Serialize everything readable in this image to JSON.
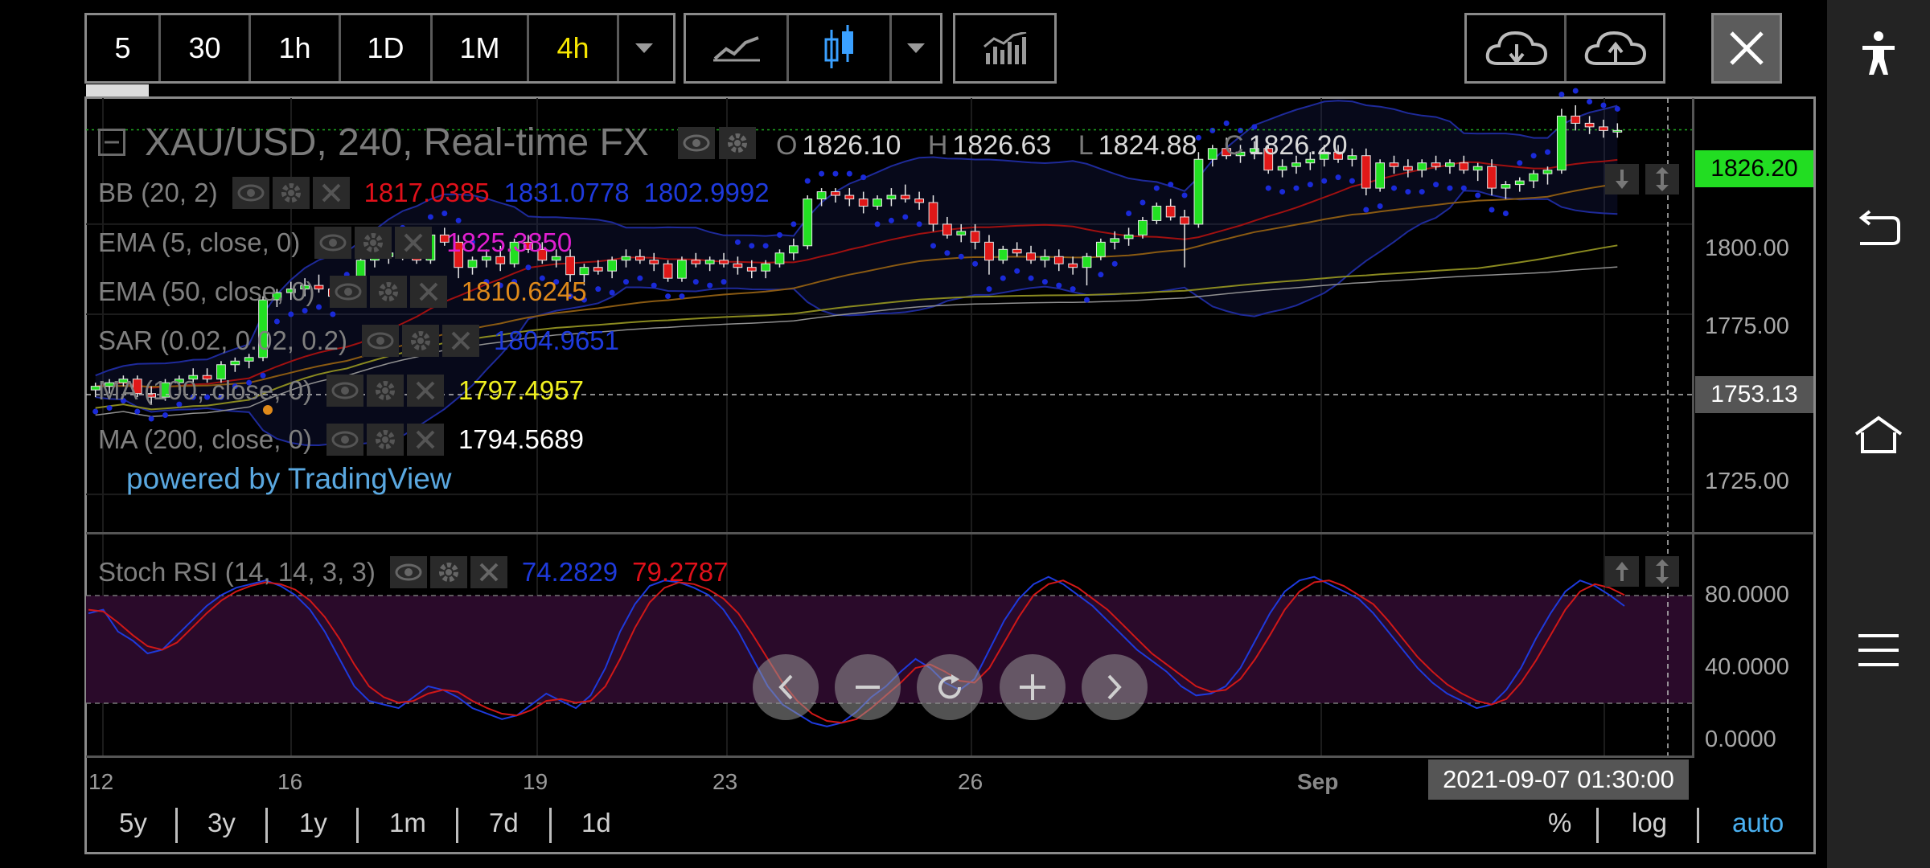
{
  "toolbar": {
    "intervals": [
      "5",
      "30",
      "1h",
      "1D",
      "1M",
      "4h"
    ],
    "active_interval": "4h",
    "chart_types": [
      "line-chart-icon",
      "candlestick-chart-icon",
      "chevron-down-icon"
    ],
    "indicators_icon": "indicators-icon",
    "cloud_icons": [
      "cloud-download-icon",
      "cloud-upload-icon"
    ]
  },
  "symbol": {
    "title": "XAU/USD, 240, Real-time FX",
    "ohlc": {
      "o_label": "O",
      "o": "1826.10",
      "h_label": "H",
      "h": "1826.63",
      "l_label": "L",
      "l": "1824.88",
      "c_label": "C",
      "c": "1826.20"
    }
  },
  "indicators": [
    {
      "name": "BB (20, 2)",
      "values": [
        "1817.0385",
        "1831.0778",
        "1802.9992"
      ],
      "colors": [
        "#e0101a",
        "#1e3adc",
        "#1e3adc"
      ]
    },
    {
      "name": "EMA (5, close, 0)",
      "values": [
        "1825.3850"
      ],
      "colors": [
        "#e01fd0"
      ]
    },
    {
      "name": "EMA (50, close, 0)",
      "values": [
        "1810.6245"
      ],
      "colors": [
        "#e08a1a"
      ]
    },
    {
      "name": "SAR (0.02, 0.02, 0.2)",
      "values": [
        "1804.9651"
      ],
      "colors": [
        "#1e3adc"
      ]
    },
    {
      "name": "MA (100, close, 0)",
      "values": [
        "1797.4957"
      ],
      "colors": [
        "#f0f020"
      ]
    },
    {
      "name": "MA (200, close, 0)",
      "values": [
        "1794.5689"
      ],
      "colors": [
        "#ffffff"
      ]
    }
  ],
  "powered_by": "powered by TradingView",
  "price_axis": {
    "labels": [
      "1800.00",
      "1775.00",
      "1725.00"
    ],
    "current_price": "1826.20",
    "cursor_price": "1753.13",
    "current_color": "#22dd22"
  },
  "stoch_rsi": {
    "name": "Stoch RSI (14, 14, 3, 3)",
    "values": [
      "74.2829",
      "79.2787"
    ],
    "colors": [
      "#1e3adc",
      "#e0101a"
    ],
    "axis_labels": [
      "80.0000",
      "40.0000",
      "0.0000"
    ]
  },
  "time_axis": {
    "labels": [
      "12",
      "16",
      "19",
      "23",
      "26",
      "Sep"
    ],
    "cursor_time": "2021-09-07 01:30:00"
  },
  "ranges": [
    "5y",
    "3y",
    "1y",
    "1m",
    "7d",
    "1d"
  ],
  "scale_options": {
    "percent": "%",
    "log": "log",
    "auto": "auto"
  },
  "nav_controls": [
    "chevron-left-icon",
    "minus-icon",
    "refresh-icon",
    "plus-icon",
    "chevron-right-icon"
  ],
  "side_bar": [
    "accessibility-icon",
    "back-icon",
    "home-icon",
    "menu-icon"
  ],
  "chart_data": {
    "type": "candlestick",
    "title": "XAU/USD, 240, Real-time FX",
    "ylim": [
      1715,
      1835
    ],
    "y_ticks": [
      1725,
      1775,
      1800
    ],
    "x_ticks": [
      "12",
      "16",
      "19",
      "23",
      "26",
      "Sep"
    ],
    "candles": [
      [
        1754,
        1756,
        1752,
        1755
      ],
      [
        1755,
        1757,
        1753,
        1756
      ],
      [
        1756,
        1758,
        1755,
        1757
      ],
      [
        1757,
        1758,
        1752,
        1753
      ],
      [
        1753,
        1755,
        1750,
        1752
      ],
      [
        1752,
        1757,
        1751,
        1756
      ],
      [
        1756,
        1758,
        1754,
        1757
      ],
      [
        1757,
        1760,
        1756,
        1758
      ],
      [
        1758,
        1760,
        1756,
        1757
      ],
      [
        1757,
        1762,
        1756,
        1761
      ],
      [
        1761,
        1763,
        1759,
        1762
      ],
      [
        1762,
        1764,
        1760,
        1763
      ],
      [
        1763,
        1780,
        1762,
        1779
      ],
      [
        1779,
        1782,
        1777,
        1781
      ],
      [
        1781,
        1784,
        1779,
        1782
      ],
      [
        1782,
        1785,
        1780,
        1783
      ],
      [
        1783,
        1786,
        1781,
        1782
      ],
      [
        1782,
        1784,
        1779,
        1780
      ],
      [
        1780,
        1782,
        1778,
        1779
      ],
      [
        1779,
        1792,
        1778,
        1790
      ],
      [
        1790,
        1793,
        1788,
        1791
      ],
      [
        1791,
        1794,
        1789,
        1792
      ],
      [
        1792,
        1795,
        1790,
        1791
      ],
      [
        1791,
        1793,
        1789,
        1790
      ],
      [
        1790,
        1798,
        1789,
        1797
      ],
      [
        1797,
        1799,
        1794,
        1795
      ],
      [
        1795,
        1797,
        1785,
        1788
      ],
      [
        1788,
        1791,
        1786,
        1790
      ],
      [
        1790,
        1793,
        1788,
        1791
      ],
      [
        1791,
        1794,
        1787,
        1789
      ],
      [
        1789,
        1796,
        1788,
        1795
      ],
      [
        1795,
        1797,
        1792,
        1793
      ],
      [
        1793,
        1795,
        1789,
        1790
      ],
      [
        1790,
        1793,
        1788,
        1791
      ],
      [
        1791,
        1793,
        1784,
        1786
      ],
      [
        1786,
        1789,
        1783,
        1788
      ],
      [
        1788,
        1790,
        1786,
        1787
      ],
      [
        1787,
        1791,
        1785,
        1790
      ],
      [
        1790,
        1793,
        1788,
        1791
      ],
      [
        1791,
        1793,
        1789,
        1790
      ],
      [
        1790,
        1792,
        1787,
        1789
      ],
      [
        1789,
        1790,
        1784,
        1785
      ],
      [
        1785,
        1791,
        1784,
        1790
      ],
      [
        1790,
        1792,
        1788,
        1789
      ],
      [
        1789,
        1791,
        1787,
        1790
      ],
      [
        1790,
        1792,
        1788,
        1789
      ],
      [
        1789,
        1791,
        1786,
        1788
      ],
      [
        1788,
        1790,
        1785,
        1787
      ],
      [
        1787,
        1790,
        1785,
        1789
      ],
      [
        1789,
        1793,
        1788,
        1792
      ],
      [
        1792,
        1796,
        1790,
        1794
      ],
      [
        1794,
        1808,
        1793,
        1807
      ],
      [
        1807,
        1810,
        1805,
        1809
      ],
      [
        1809,
        1810,
        1806,
        1808
      ],
      [
        1808,
        1810,
        1805,
        1807
      ],
      [
        1807,
        1809,
        1803,
        1805
      ],
      [
        1805,
        1808,
        1804,
        1807
      ],
      [
        1807,
        1810,
        1805,
        1808
      ],
      [
        1808,
        1811,
        1806,
        1807
      ],
      [
        1807,
        1809,
        1804,
        1806
      ],
      [
        1806,
        1808,
        1798,
        1800
      ],
      [
        1800,
        1802,
        1796,
        1797
      ],
      [
        1797,
        1800,
        1795,
        1798
      ],
      [
        1798,
        1800,
        1793,
        1795
      ],
      [
        1795,
        1797,
        1786,
        1790
      ],
      [
        1790,
        1794,
        1789,
        1793
      ],
      [
        1793,
        1795,
        1791,
        1792
      ],
      [
        1792,
        1794,
        1789,
        1790
      ],
      [
        1790,
        1793,
        1788,
        1791
      ],
      [
        1791,
        1793,
        1787,
        1789
      ],
      [
        1789,
        1791,
        1786,
        1788
      ],
      [
        1788,
        1792,
        1783,
        1791
      ],
      [
        1791,
        1796,
        1790,
        1795
      ],
      [
        1795,
        1798,
        1793,
        1796
      ],
      [
        1796,
        1799,
        1794,
        1797
      ],
      [
        1797,
        1802,
        1796,
        1801
      ],
      [
        1801,
        1806,
        1800,
        1805
      ],
      [
        1805,
        1807,
        1801,
        1802
      ],
      [
        1802,
        1804,
        1788,
        1800
      ],
      [
        1800,
        1820,
        1799,
        1818
      ],
      [
        1818,
        1822,
        1816,
        1821
      ],
      [
        1821,
        1824,
        1818,
        1819
      ],
      [
        1819,
        1822,
        1817,
        1820
      ],
      [
        1820,
        1823,
        1818,
        1821
      ],
      [
        1821,
        1822,
        1814,
        1815
      ],
      [
        1815,
        1818,
        1813,
        1816
      ],
      [
        1816,
        1819,
        1814,
        1817
      ],
      [
        1817,
        1820,
        1815,
        1818
      ],
      [
        1818,
        1822,
        1816,
        1820
      ],
      [
        1820,
        1822,
        1817,
        1818
      ],
      [
        1818,
        1821,
        1816,
        1819
      ],
      [
        1819,
        1821,
        1808,
        1810
      ],
      [
        1810,
        1818,
        1809,
        1817
      ],
      [
        1817,
        1819,
        1814,
        1816
      ],
      [
        1816,
        1818,
        1813,
        1815
      ],
      [
        1815,
        1818,
        1813,
        1817
      ],
      [
        1817,
        1819,
        1815,
        1816
      ],
      [
        1816,
        1818,
        1814,
        1817
      ],
      [
        1817,
        1819,
        1814,
        1815
      ],
      [
        1815,
        1817,
        1812,
        1816
      ],
      [
        1816,
        1818,
        1808,
        1810
      ],
      [
        1810,
        1812,
        1807,
        1811
      ],
      [
        1811,
        1813,
        1809,
        1812
      ],
      [
        1812,
        1815,
        1810,
        1814
      ],
      [
        1814,
        1816,
        1811,
        1815
      ],
      [
        1815,
        1832,
        1814,
        1830
      ],
      [
        1830,
        1833,
        1826,
        1828
      ],
      [
        1828,
        1830,
        1825,
        1827
      ],
      [
        1827,
        1829,
        1824,
        1826
      ],
      [
        1826,
        1828,
        1824,
        1826
      ]
    ],
    "stoch_k": [
      70,
      72,
      60,
      55,
      48,
      50,
      58,
      66,
      74,
      80,
      84,
      86,
      88,
      85,
      80,
      72,
      60,
      45,
      30,
      22,
      20,
      18,
      24,
      30,
      28,
      24,
      18,
      15,
      12,
      14,
      20,
      26,
      22,
      18,
      25,
      40,
      60,
      75,
      85,
      88,
      87,
      84,
      80,
      72,
      60,
      45,
      30,
      20,
      15,
      10,
      8,
      10,
      16,
      24,
      30,
      38,
      45,
      40,
      32,
      28,
      34,
      50,
      66,
      78,
      86,
      90,
      86,
      80,
      74,
      66,
      58,
      50,
      44,
      38,
      30,
      25,
      26,
      30,
      40,
      55,
      70,
      82,
      88,
      90,
      86,
      82,
      78,
      70,
      60,
      50,
      40,
      32,
      26,
      22,
      18,
      20,
      28,
      40,
      56,
      70,
      82,
      88,
      85,
      80,
      74
    ],
    "stoch_d": [
      72,
      71,
      65,
      58,
      52,
      50,
      54,
      62,
      70,
      77,
      82,
      85,
      87,
      86,
      83,
      77,
      68,
      56,
      42,
      30,
      24,
      21,
      22,
      26,
      28,
      27,
      22,
      18,
      15,
      14,
      17,
      22,
      23,
      21,
      22,
      30,
      45,
      62,
      76,
      84,
      87,
      86,
      83,
      78,
      70,
      58,
      45,
      32,
      22,
      15,
      11,
      10,
      12,
      18,
      25,
      32,
      40,
      42,
      38,
      33,
      32,
      40,
      54,
      68,
      80,
      86,
      88,
      84,
      78,
      72,
      64,
      56,
      48,
      42,
      36,
      30,
      27,
      28,
      34,
      45,
      58,
      72,
      82,
      87,
      88,
      85,
      80,
      75,
      66,
      56,
      46,
      38,
      31,
      26,
      22,
      20,
      23,
      32,
      44,
      58,
      72,
      82,
      86,
      84,
      80
    ]
  }
}
